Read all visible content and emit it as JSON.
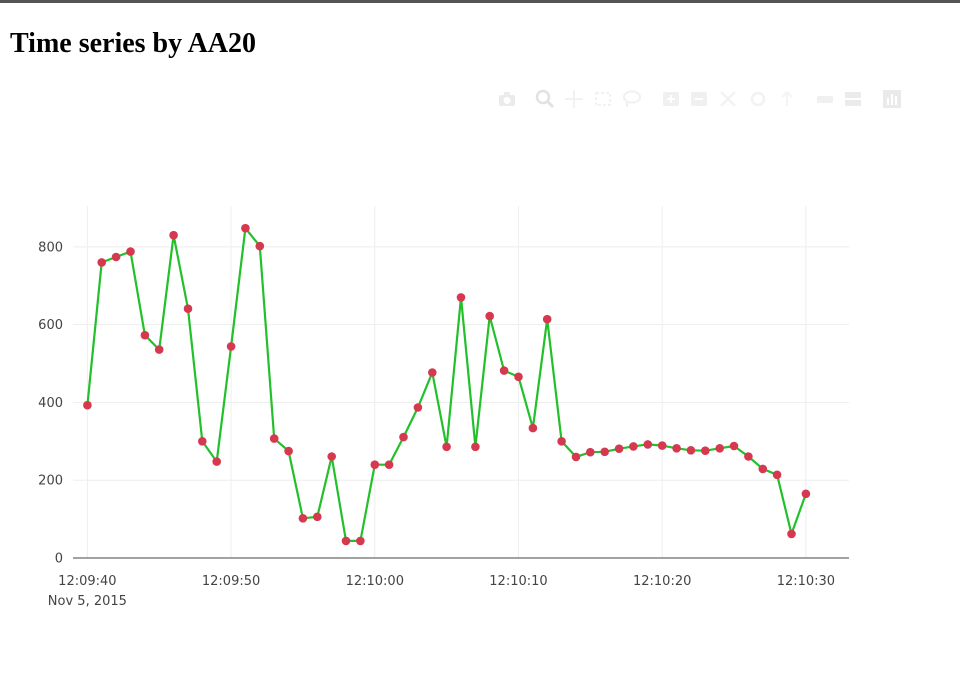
{
  "page": {
    "title": "Time series by AA20"
  },
  "modebar": {
    "buttons": [
      {
        "name": "camera-icon",
        "label": "Download plot as a png"
      },
      {
        "name": "zoom-icon",
        "label": "Zoom"
      },
      {
        "name": "pan-icon",
        "label": "Pan"
      },
      {
        "name": "box-select-icon",
        "label": "Box Select"
      },
      {
        "name": "lasso-select-icon",
        "label": "Lasso Select"
      },
      {
        "name": "zoom-in-icon",
        "label": "Zoom in"
      },
      {
        "name": "zoom-out-icon",
        "label": "Zoom out"
      },
      {
        "name": "autoscale-icon",
        "label": "Autoscale"
      },
      {
        "name": "reset-axes-icon",
        "label": "Reset axes"
      },
      {
        "name": "spike-lines-icon",
        "label": "Toggle Spike Lines"
      },
      {
        "name": "hover-closest-icon",
        "label": "Show closest data on hover"
      },
      {
        "name": "hover-compare-icon",
        "label": "Compare data on hover"
      },
      {
        "name": "plotly-logo-icon",
        "label": "Produced with Plotly"
      }
    ]
  },
  "chart_data": {
    "type": "line",
    "mode": "lines+markers",
    "title": "",
    "xlabel": "",
    "ylabel": "",
    "x_start": "2015-11-05 12:09:40",
    "x_step_seconds": 1,
    "xlim": [
      "2015-11-05 12:09:39",
      "2015-11-05 12:10:33"
    ],
    "ylim": [
      0,
      900
    ],
    "x_ticks": [
      {
        "label": "12:09:40",
        "sublabel": "Nov 5, 2015",
        "t": "2015-11-05 12:09:40"
      },
      {
        "label": "12:09:50",
        "sublabel": "",
        "t": "2015-11-05 12:09:50"
      },
      {
        "label": "12:10:00",
        "sublabel": "",
        "t": "2015-11-05 12:10:00"
      },
      {
        "label": "12:10:10",
        "sublabel": "",
        "t": "2015-11-05 12:10:10"
      },
      {
        "label": "12:10:20",
        "sublabel": "",
        "t": "2015-11-05 12:10:20"
      },
      {
        "label": "12:10:30",
        "sublabel": "",
        "t": "2015-11-05 12:10:30"
      }
    ],
    "y_ticks": [
      0,
      200,
      400,
      600,
      800
    ],
    "grid": true,
    "legend": "none",
    "line_color": "#22c02a",
    "marker_color": "#d6394f",
    "series": [
      {
        "x": [
          "12:09:40",
          "12:09:41",
          "12:09:42",
          "12:09:43",
          "12:09:44",
          "12:09:45",
          "12:09:46",
          "12:09:47",
          "12:09:48",
          "12:09:49",
          "12:09:50",
          "12:09:51",
          "12:09:52",
          "12:09:53",
          "12:09:54",
          "12:09:55",
          "12:09:56",
          "12:09:57",
          "12:09:58",
          "12:09:59",
          "12:10:00",
          "12:10:01",
          "12:10:02",
          "12:10:03",
          "12:10:04",
          "12:10:05",
          "12:10:06",
          "12:10:07",
          "12:10:08",
          "12:10:09",
          "12:10:10",
          "12:10:11",
          "12:10:12",
          "12:10:13",
          "12:10:14",
          "12:10:15",
          "12:10:16",
          "12:10:17",
          "12:10:18",
          "12:10:19",
          "12:10:20",
          "12:10:21",
          "12:10:22",
          "12:10:23",
          "12:10:24",
          "12:10:25",
          "12:10:26",
          "12:10:27",
          "12:10:28",
          "12:10:29",
          "12:10:30"
        ],
        "values": [
          393,
          760,
          774,
          788,
          573,
          536,
          830,
          641,
          300,
          248,
          544,
          848,
          802,
          307,
          275,
          102,
          106,
          261,
          44,
          44,
          240,
          240,
          311,
          387,
          477,
          286,
          670,
          286,
          622,
          482,
          466,
          334,
          614,
          300,
          260,
          272,
          273,
          281,
          287,
          292,
          289,
          282,
          277,
          276,
          282,
          288,
          261,
          229,
          214,
          62,
          165
        ]
      }
    ]
  }
}
